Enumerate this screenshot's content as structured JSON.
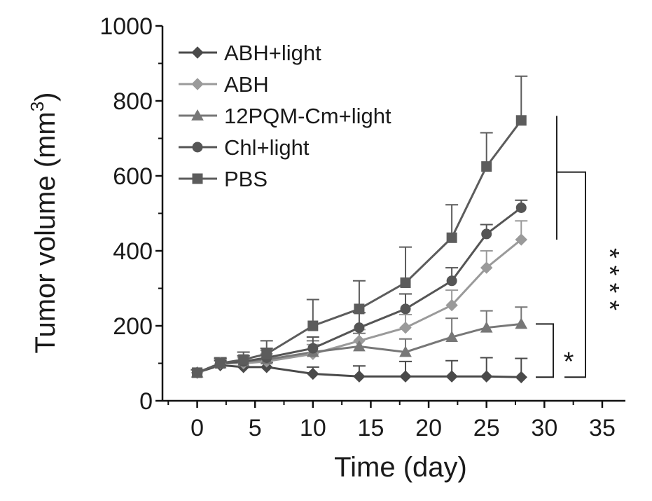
{
  "chart_data": {
    "type": "line",
    "title": "",
    "xlabel": "Time (day)",
    "ylabel_main": "Tumor volume (mm",
    "ylabel_sup": "3",
    "ylabel_close": ")",
    "xlim": [
      -3,
      37
    ],
    "ylim": [
      0,
      1000
    ],
    "xticks": [
      0,
      5,
      10,
      15,
      20,
      25,
      30,
      35
    ],
    "yticks": [
      0,
      200,
      400,
      600,
      800,
      1000
    ],
    "legend_position": "top-left",
    "series": [
      {
        "name": "ABH+light",
        "color": "#4a4a4a",
        "marker": "diamond",
        "x": [
          0,
          2,
          4,
          6,
          10,
          14,
          18,
          22,
          25,
          28
        ],
        "y": [
          75,
          95,
          90,
          90,
          72,
          65,
          65,
          65,
          65,
          63
        ],
        "err": [
          8,
          12,
          12,
          12,
          18,
          28,
          40,
          42,
          50,
          50
        ]
      },
      {
        "name": "ABH",
        "color": "#9a9a9a",
        "marker": "diamond",
        "x": [
          0,
          2,
          4,
          6,
          10,
          14,
          18,
          22,
          25,
          28
        ],
        "y": [
          75,
          100,
          100,
          105,
          125,
          160,
          195,
          255,
          355,
          430
        ],
        "err": [
          8,
          12,
          15,
          20,
          25,
          30,
          35,
          40,
          45,
          50
        ]
      },
      {
        "name": "12PQM-Cm+light",
        "color": "#777777",
        "marker": "triangle",
        "x": [
          0,
          2,
          4,
          6,
          10,
          14,
          18,
          22,
          25,
          28
        ],
        "y": [
          75,
          100,
          105,
          110,
          130,
          145,
          130,
          170,
          195,
          205
        ],
        "err": [
          8,
          12,
          15,
          25,
          30,
          35,
          35,
          50,
          45,
          45
        ]
      },
      {
        "name": "Chl+light",
        "color": "#555555",
        "marker": "circle",
        "x": [
          0,
          2,
          4,
          6,
          10,
          14,
          18,
          22,
          25,
          28
        ],
        "y": [
          75,
          100,
          105,
          115,
          140,
          195,
          245,
          320,
          445,
          515
        ],
        "err": [
          8,
          12,
          15,
          25,
          30,
          40,
          40,
          35,
          25,
          20
        ]
      },
      {
        "name": "PBS",
        "color": "#5c5c5c",
        "marker": "square",
        "x": [
          0,
          2,
          4,
          6,
          10,
          14,
          18,
          22,
          25,
          28
        ],
        "y": [
          75,
          100,
          110,
          125,
          200,
          245,
          315,
          435,
          625,
          748
        ],
        "err": [
          8,
          15,
          20,
          35,
          70,
          75,
          95,
          88,
          90,
          118
        ]
      }
    ],
    "annotations": [
      {
        "label": "*",
        "between": [
          "ABH+light",
          "12PQM-Cm+light"
        ]
      },
      {
        "label": "****",
        "between": [
          "ABH+light",
          "PBS"
        ]
      }
    ]
  }
}
